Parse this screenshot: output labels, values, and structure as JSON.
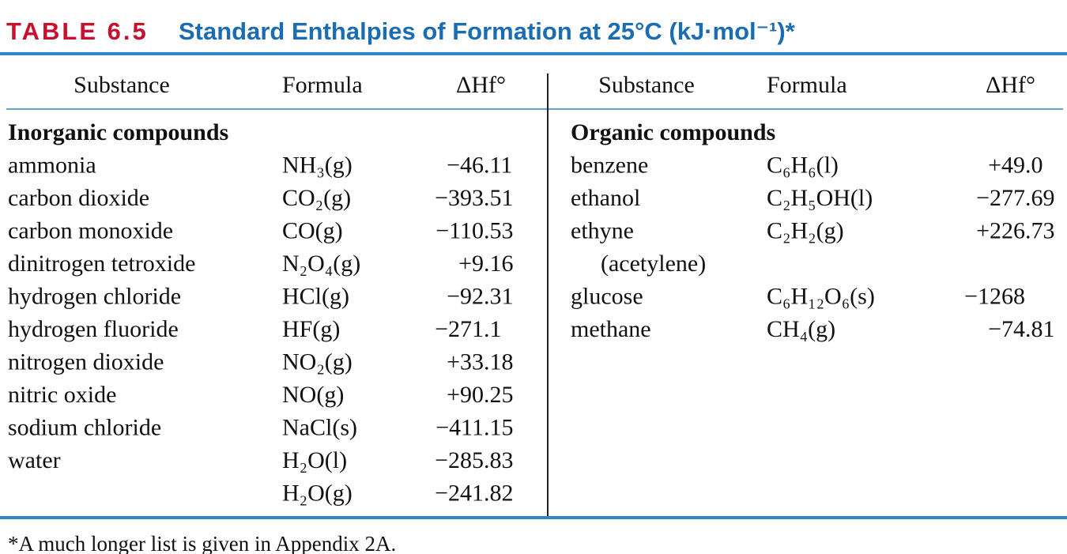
{
  "header": {
    "label": "TABLE 6.5",
    "title": "Standard Enthalpies of Formation at 25°C (kJ·mol⁻¹)*"
  },
  "columns": {
    "substance": "Substance",
    "formula": "Formula",
    "value": "ΔHf°"
  },
  "left": {
    "section": "Inorganic compounds",
    "rows": [
      {
        "substance": "ammonia",
        "formula": "NH₃(g)",
        "value": "−46.11"
      },
      {
        "substance": "carbon dioxide",
        "formula": "CO₂(g)",
        "value": "−393.51"
      },
      {
        "substance": "carbon monoxide",
        "formula": "CO(g)",
        "value": "−110.53"
      },
      {
        "substance": "dinitrogen tetroxide",
        "formula": "N₂O₄(g)",
        "value": "+9.16"
      },
      {
        "substance": "hydrogen chloride",
        "formula": "HCl(g)",
        "value": "−92.31"
      },
      {
        "substance": "hydrogen fluoride",
        "formula": "HF(g)",
        "value": "−271.1"
      },
      {
        "substance": "nitrogen dioxide",
        "formula": "NO₂(g)",
        "value": "+33.18"
      },
      {
        "substance": "nitric oxide",
        "formula": "NO(g)",
        "value": "+90.25"
      },
      {
        "substance": "sodium chloride",
        "formula": "NaCl(s)",
        "value": "−411.15"
      },
      {
        "substance": "water",
        "formula": "H₂O(l)",
        "value": "−285.83"
      },
      {
        "formula": "H₂O(g)",
        "value": "−241.82"
      }
    ]
  },
  "right": {
    "section": "Organic compounds",
    "rows": [
      {
        "substance": "benzene",
        "formula": "C₆H₆(l)",
        "value": "+49.0"
      },
      {
        "substance": "ethanol",
        "formula": "C₂H₅OH(l)",
        "value": "−277.69"
      },
      {
        "substance": "ethyne",
        "note": "(acetylene)",
        "formula": "C₂H₂(g)",
        "value": "+226.73"
      },
      {
        "substance": "glucose",
        "formula": "C₆H₁₂O₆(s)",
        "value": "−1268"
      },
      {
        "substance": "methane",
        "formula": "CH₄(g)",
        "value": "−74.81"
      }
    ]
  },
  "footnote": "*A much longer list is given in Appendix 2A."
}
